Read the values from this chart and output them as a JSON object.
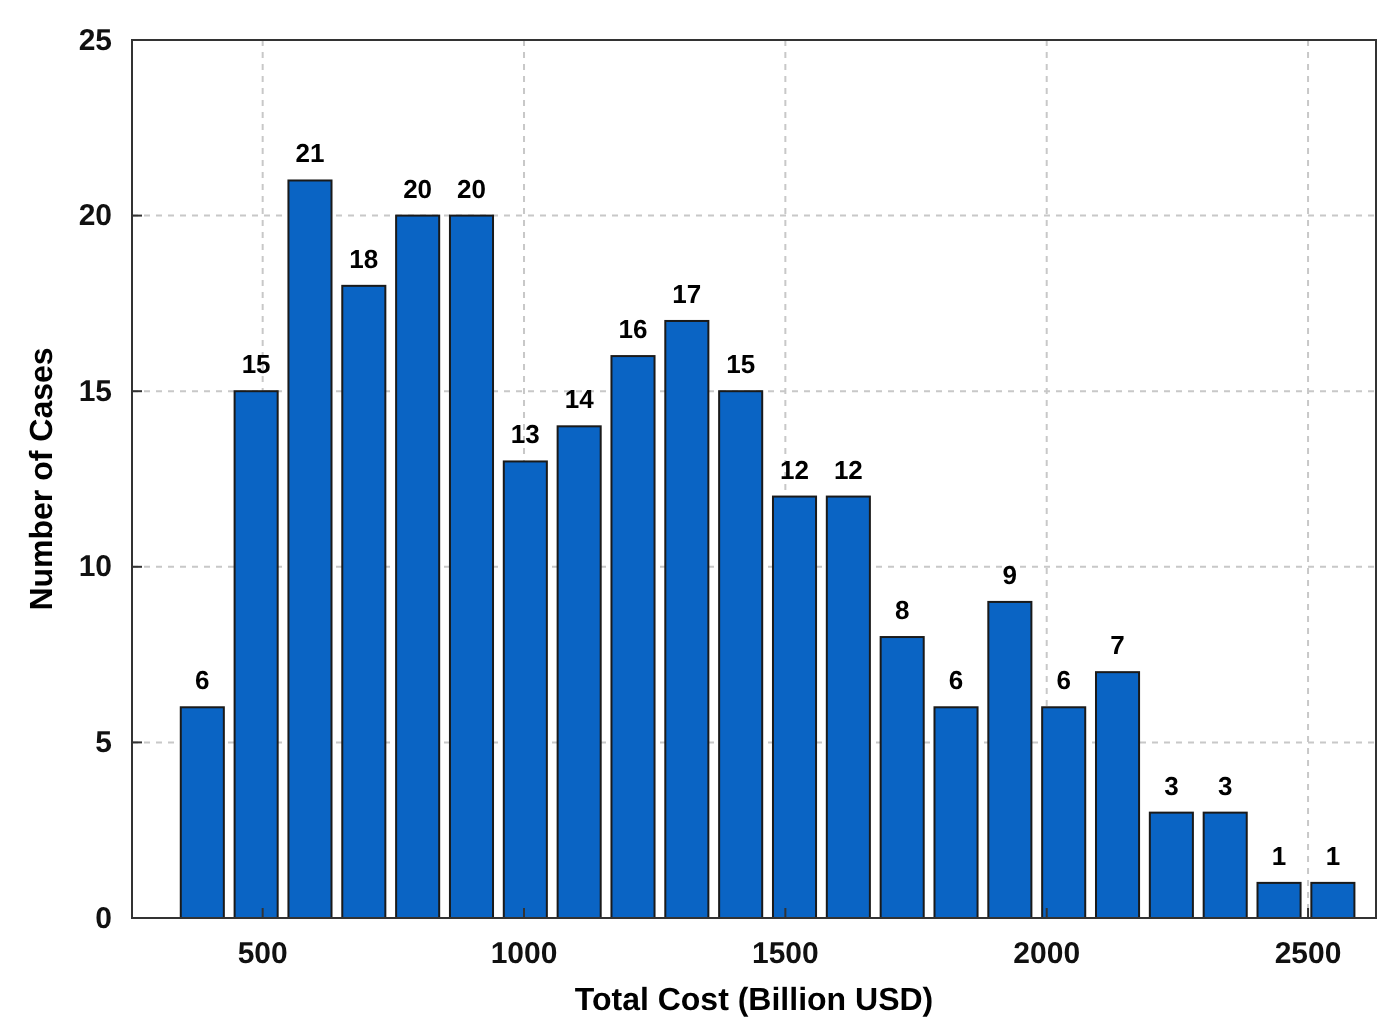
{
  "chart_data": {
    "type": "histogram",
    "xlabel": "Total Cost (Billion USD)",
    "ylabel": "Number of Cases",
    "bins": [
      333,
      436,
      539,
      642,
      745,
      848,
      951,
      1054,
      1157,
      1260,
      1363,
      1466,
      1569,
      1672,
      1775,
      1878,
      1981,
      2084,
      2187,
      2290,
      2393,
      2496,
      2599
    ],
    "values": [
      6,
      15,
      21,
      18,
      20,
      20,
      13,
      14,
      16,
      17,
      15,
      12,
      12,
      8,
      6,
      9,
      6,
      7,
      3,
      3,
      1,
      1
    ],
    "color": "#0a64c4",
    "data_labels": true,
    "xlim": [
      250,
      2630
    ],
    "xticks": [
      500,
      1000,
      1500,
      2000,
      2500
    ],
    "ylim": [
      0,
      25
    ],
    "yticks": [
      0,
      5,
      10,
      15,
      20,
      25
    ],
    "grid": true
  }
}
